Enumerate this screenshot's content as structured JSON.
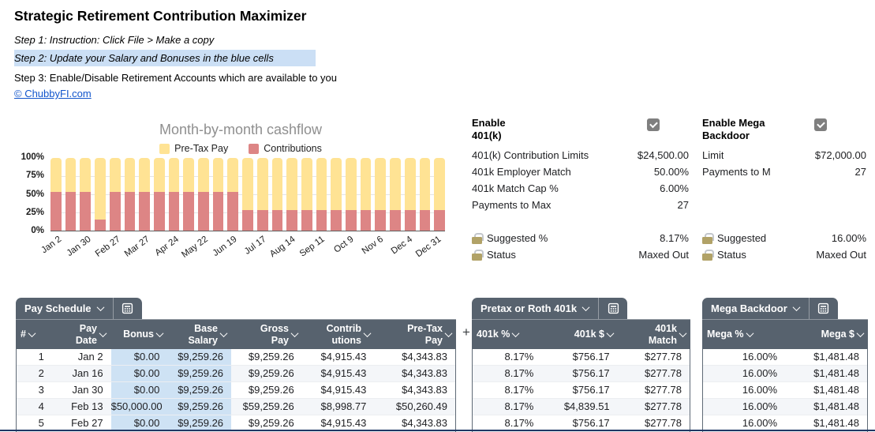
{
  "header": {
    "title": "Strategic Retirement Contribution Maximizer",
    "step1": "Step 1: Instruction: Click File > Make a copy",
    "step2": "Step 2: Update your Salary and Bonuses in the blue cells",
    "step3": "Step 3: Enable/Disable Retirement Accounts which are available to you",
    "link": "© ChubbyFI.com"
  },
  "chart_data": {
    "type": "bar",
    "stacked": "percent",
    "title": "Month-by-month cashflow",
    "bar_count": 27,
    "legend_position": "top",
    "grid": true,
    "y_range": [
      0,
      100
    ],
    "y_ticks": [
      "100%",
      "75%",
      "50%",
      "25%",
      "0%"
    ],
    "x_tick_labels": [
      "Jan 2",
      "Jan 30",
      "Feb 27",
      "Mar 27",
      "Apr 24",
      "May 22",
      "Jun 19",
      "Jul 17",
      "Aug 14",
      "Sep 11",
      "Oct 9",
      "Nov 6",
      "Dec 4",
      "Dec 31"
    ],
    "x_label_every_n_bars": 2,
    "series": [
      {
        "name": "Pre-Tax Pay",
        "color": "#FFE394",
        "role": "remainder_to_100pct"
      },
      {
        "name": "Contributions",
        "color": "#DD8585",
        "values_pct": [
          53,
          53,
          53,
          15,
          53,
          53,
          53,
          53,
          53,
          53,
          53,
          53,
          53,
          28,
          28,
          28,
          28,
          28,
          28,
          28,
          28,
          28,
          28,
          28,
          28,
          28,
          28
        ]
      }
    ]
  },
  "panels": {
    "k401": {
      "title": "Enable\n401(k)",
      "checkbox_checked": true,
      "rows": [
        {
          "label": "401(k) Contribution Limits",
          "value": "$24,500.00"
        },
        {
          "label": "401k Employer Match",
          "value": "50.00%"
        },
        {
          "label": "401k Match Cap %",
          "value": "6.00%"
        },
        {
          "label": "Payments to Max",
          "value": "27"
        }
      ],
      "locked_rows": [
        {
          "label": "Suggested %",
          "value": "8.17%"
        },
        {
          "label": "Status",
          "value": "Maxed Out"
        }
      ]
    },
    "mega": {
      "title": "Enable Mega\nBackdoor",
      "checkbox_checked": true,
      "rows": [
        {
          "label": "Limit",
          "value": "$72,000.00"
        },
        {
          "label": "Payments to M",
          "value": "27"
        }
      ],
      "locked_rows": [
        {
          "label": "Suggested",
          "value": "16.00%"
        },
        {
          "label": "Status",
          "value": "Maxed Out"
        }
      ]
    }
  },
  "tables": {
    "pay_schedule": {
      "tab": "Pay Schedule",
      "columns": [
        "#",
        "Pay\nDate",
        "Bonus",
        "Base\nSalary",
        "Gross\nPay",
        "Contrib\nutions",
        "Pre-Tax\nPay"
      ],
      "rows": [
        [
          "1",
          "Jan 2",
          "$0.00",
          "$9,259.26",
          "$9,259.26",
          "$4,915.43",
          "$4,343.83"
        ],
        [
          "2",
          "Jan 16",
          "$0.00",
          "$9,259.26",
          "$9,259.26",
          "$4,915.43",
          "$4,343.83"
        ],
        [
          "3",
          "Jan 30",
          "$0.00",
          "$9,259.26",
          "$9,259.26",
          "$4,915.43",
          "$4,343.83"
        ],
        [
          "4",
          "Feb 13",
          "$50,000.00",
          "$9,259.26",
          "$59,259.26",
          "$8,998.77",
          "$50,260.49"
        ],
        [
          "5",
          "Feb 27",
          "$0.00",
          "$9,259.26",
          "$9,259.26",
          "$4,915.43",
          "$4,343.83"
        ]
      ]
    },
    "pretax": {
      "tab": "Pretax or Roth 401k",
      "columns": [
        "401k %",
        "401k $",
        "401k\nMatch"
      ],
      "rows": [
        [
          "8.17%",
          "$756.17",
          "$277.78"
        ],
        [
          "8.17%",
          "$756.17",
          "$277.78"
        ],
        [
          "8.17%",
          "$756.17",
          "$277.78"
        ],
        [
          "8.17%",
          "$4,839.51",
          "$277.78"
        ],
        [
          "8.17%",
          "$756.17",
          "$277.78"
        ]
      ]
    },
    "mega": {
      "tab": "Mega Backdoor",
      "columns": [
        "Mega %",
        "Mega $"
      ],
      "rows": [
        [
          "16.00%",
          "$1,481.48"
        ],
        [
          "16.00%",
          "$1,481.48"
        ],
        [
          "16.00%",
          "$1,481.48"
        ],
        [
          "16.00%",
          "$1,481.48"
        ],
        [
          "16.00%",
          "$1,481.48"
        ]
      ]
    }
  },
  "add_column_button": "+",
  "theme": {
    "table_header_bg": "#57626E",
    "blue_cell": "#CEE2F4",
    "step_highlight": "#CBDFF5",
    "link_color": "#1155CC",
    "bottom_line": "#1F3864",
    "checkbox_bg": "#7F7F7F",
    "lock_body": "#B1A267"
  }
}
